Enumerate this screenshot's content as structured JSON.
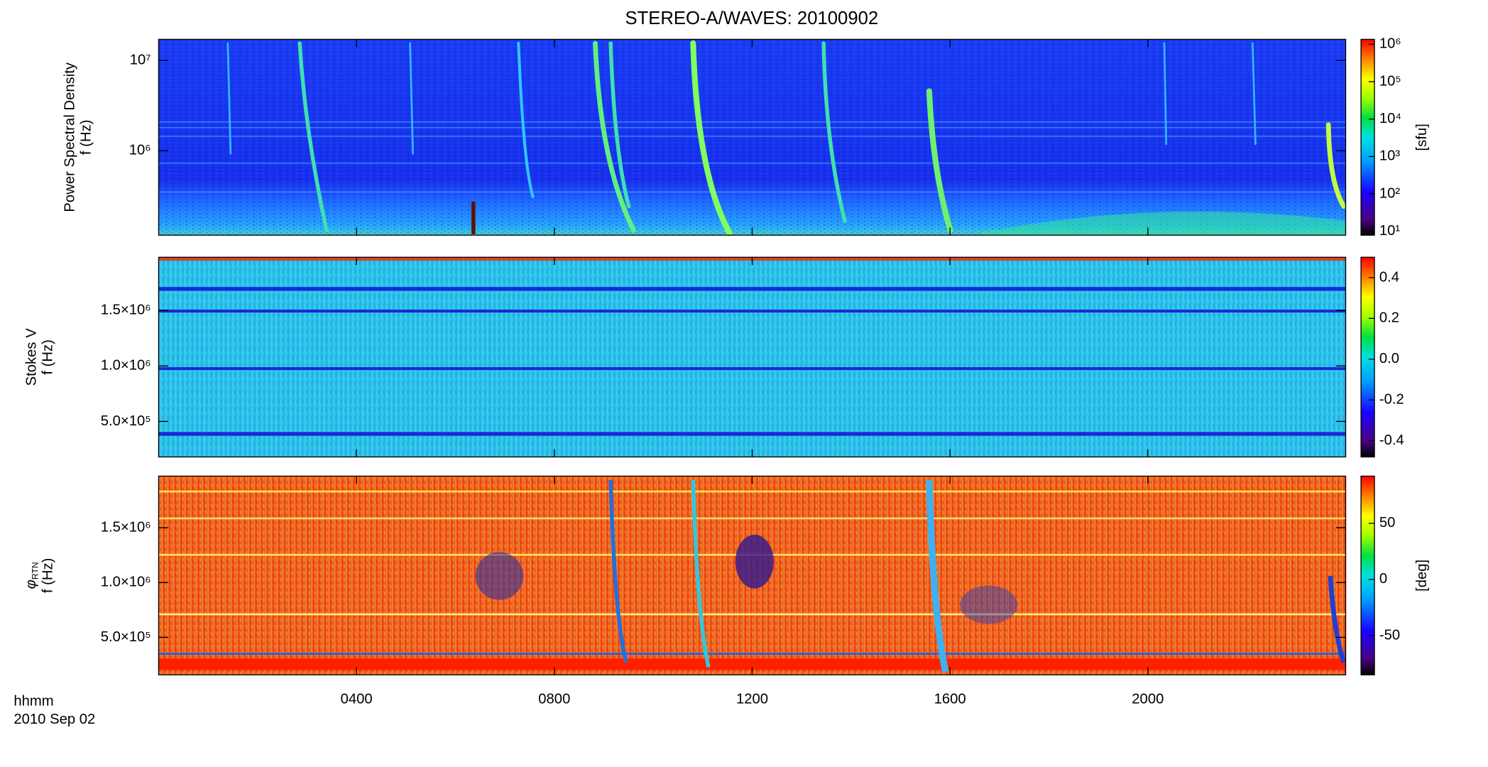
{
  "title": "STEREO-A/WAVES: 20100902",
  "x_label": [
    "hhmm",
    "2010 Sep 02"
  ],
  "time_axis": {
    "xlim": [
      0,
      24
    ],
    "xticks": [
      {
        "value": 4,
        "label": "0400"
      },
      {
        "value": 8,
        "label": "0800"
      },
      {
        "value": 12,
        "label": "1200"
      },
      {
        "value": 16,
        "label": "1600"
      },
      {
        "value": 20,
        "label": "2000"
      }
    ]
  },
  "chart_data": [
    {
      "type": "heatmap",
      "ylabel": [
        "Power Spectral Density",
        "f (Hz)"
      ],
      "yscale": "log",
      "ylim": [
        116000,
        17100000
      ],
      "yticks": [
        {
          "value": 1000000,
          "label": "10⁶"
        },
        {
          "value": 10000000,
          "label": "10⁷"
        }
      ],
      "colormap": "rainbow",
      "cscale": "log",
      "clim": [
        7.9,
        1350000
      ],
      "cticks": [
        {
          "value": 10,
          "label": "10¹"
        },
        {
          "value": 100,
          "label": "10²"
        },
        {
          "value": 1000,
          "label": "10³"
        },
        {
          "value": 10000,
          "label": "10⁴"
        },
        {
          "value": 100000,
          "label": "10⁵"
        },
        {
          "value": 1000000,
          "label": "10⁶"
        }
      ],
      "colorbar_label": "[sfu]"
    },
    {
      "type": "heatmap",
      "ylabel": [
        "Stokes V",
        "f (Hz)"
      ],
      "yscale": "linear",
      "ylim": [
        180000,
        1980000
      ],
      "yticks": [
        {
          "value": 500000,
          "label": "5.0×10⁵"
        },
        {
          "value": 1000000,
          "label": "1.0×10⁶"
        },
        {
          "value": 1500000,
          "label": "1.5×10⁶"
        }
      ],
      "colormap": "rainbow",
      "cscale": "linear",
      "clim": [
        -0.48,
        0.5
      ],
      "cticks": [
        {
          "value": -0.4,
          "label": "-0.4"
        },
        {
          "value": -0.2,
          "label": "-0.2"
        },
        {
          "value": 0,
          "label": "0.0"
        },
        {
          "value": 0.2,
          "label": "0.2"
        },
        {
          "value": 0.4,
          "label": "0.4"
        }
      ]
    },
    {
      "type": "heatmap",
      "ylabel": [
        {
          "text": "φ",
          "subscript": "RTN"
        },
        "f (Hz)"
      ],
      "yscale": "linear",
      "ylim": [
        158000,
        1970000
      ],
      "yticks": [
        {
          "value": 500000,
          "label": "5.0×10⁵"
        },
        {
          "value": 1000000,
          "label": "1.0×10⁶"
        },
        {
          "value": 1500000,
          "label": "1.5×10⁶"
        }
      ],
      "colormap": "rainbow",
      "cscale": "linear",
      "clim": [
        -85,
        92
      ],
      "cticks": [
        -50,
        0,
        50
      ],
      "colorbar_label": "[deg]"
    }
  ]
}
